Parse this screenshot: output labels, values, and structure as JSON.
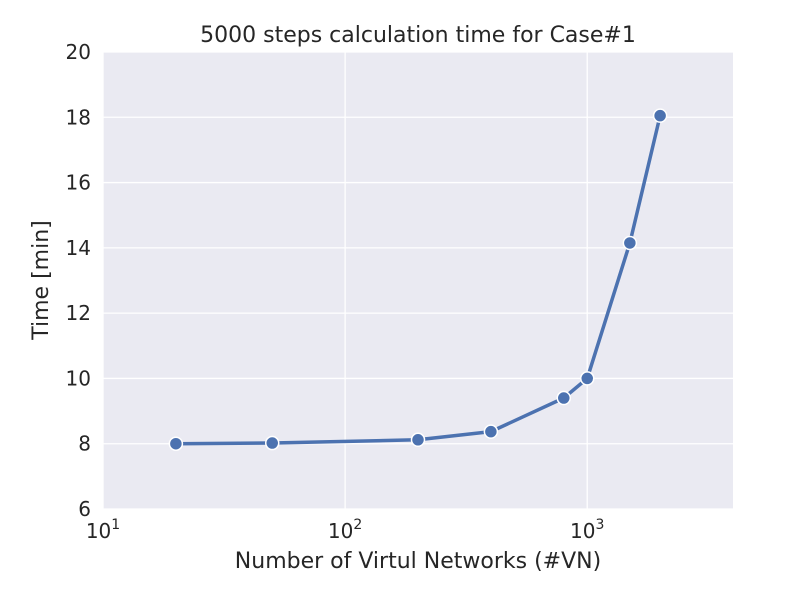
{
  "chart_data": {
    "type": "line",
    "title": "5000 steps calculation time for Case#1",
    "xlabel": "Number of Virtul Networks (#VN)",
    "ylabel": "Time [min]",
    "xscale": "log",
    "xlim": [
      10,
      4000
    ],
    "ylim": [
      6,
      20
    ],
    "xticks": [
      {
        "value": 10,
        "base": "10",
        "exp": "1"
      },
      {
        "value": 100,
        "base": "10",
        "exp": "2"
      },
      {
        "value": 1000,
        "base": "10",
        "exp": "3"
      }
    ],
    "yticks": [
      "6",
      "8",
      "10",
      "12",
      "14",
      "16",
      "18",
      "20"
    ],
    "grid": true,
    "background_color": "#eaeaf2",
    "grid_color": "#ffffff",
    "series": [
      {
        "color": "#4c72b0",
        "x": [
          20,
          50,
          200,
          400,
          800,
          1000,
          1500,
          2000
        ],
        "y": [
          8.0,
          8.02,
          8.12,
          8.37,
          9.4,
          10.0,
          14.15,
          18.05
        ]
      }
    ]
  }
}
